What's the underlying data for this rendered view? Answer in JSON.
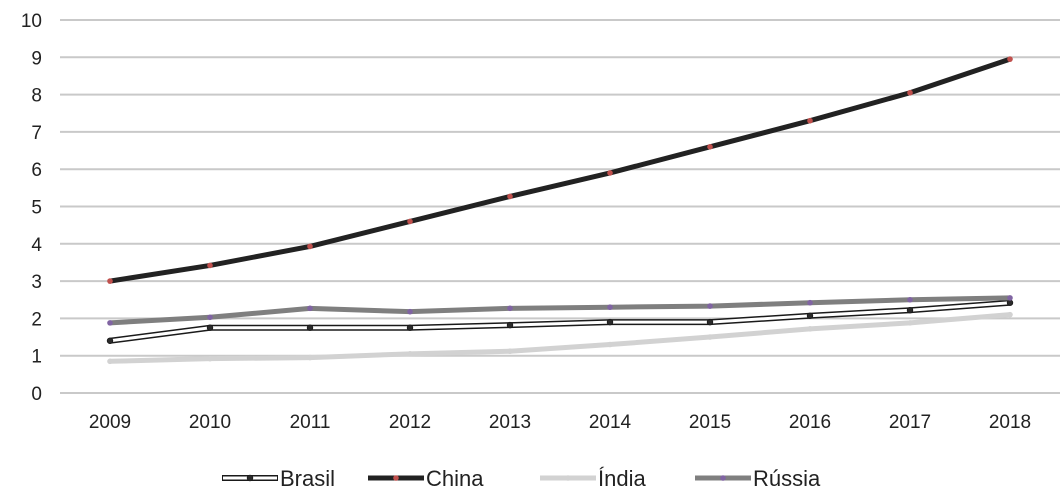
{
  "chart_data": {
    "type": "line",
    "categories": [
      "2009",
      "2010",
      "2011",
      "2012",
      "2013",
      "2014",
      "2015",
      "2016",
      "2017",
      "2018"
    ],
    "ylim": [
      0,
      10
    ],
    "yticks": [
      "0",
      "1",
      "2",
      "3",
      "4",
      "5",
      "6",
      "7",
      "8",
      "9",
      "10"
    ],
    "grid": true,
    "legend": "bottom",
    "series": [
      {
        "name": "Brasil",
        "color": "#ffffff",
        "outline": "#1a1a1a",
        "marker": "#2b2b2b",
        "values": [
          1.4,
          1.75,
          1.75,
          1.75,
          1.82,
          1.9,
          1.9,
          2.07,
          2.22,
          2.42
        ]
      },
      {
        "name": "China",
        "color": "#222222",
        "marker": "#c0504d",
        "values": [
          3.0,
          3.42,
          3.93,
          4.6,
          5.27,
          5.9,
          6.6,
          7.3,
          8.05,
          8.95
        ]
      },
      {
        "name": "Índia",
        "color": "#d2d2d2",
        "marker": "#d2d2d2",
        "values": [
          0.85,
          0.92,
          0.95,
          1.05,
          1.12,
          1.3,
          1.5,
          1.72,
          1.88,
          2.1
        ]
      },
      {
        "name": "Rússia",
        "color": "#7f7f7f",
        "marker": "#8064a2",
        "values": [
          1.88,
          2.03,
          2.27,
          2.18,
          2.27,
          2.3,
          2.33,
          2.42,
          2.5,
          2.55
        ]
      }
    ]
  }
}
